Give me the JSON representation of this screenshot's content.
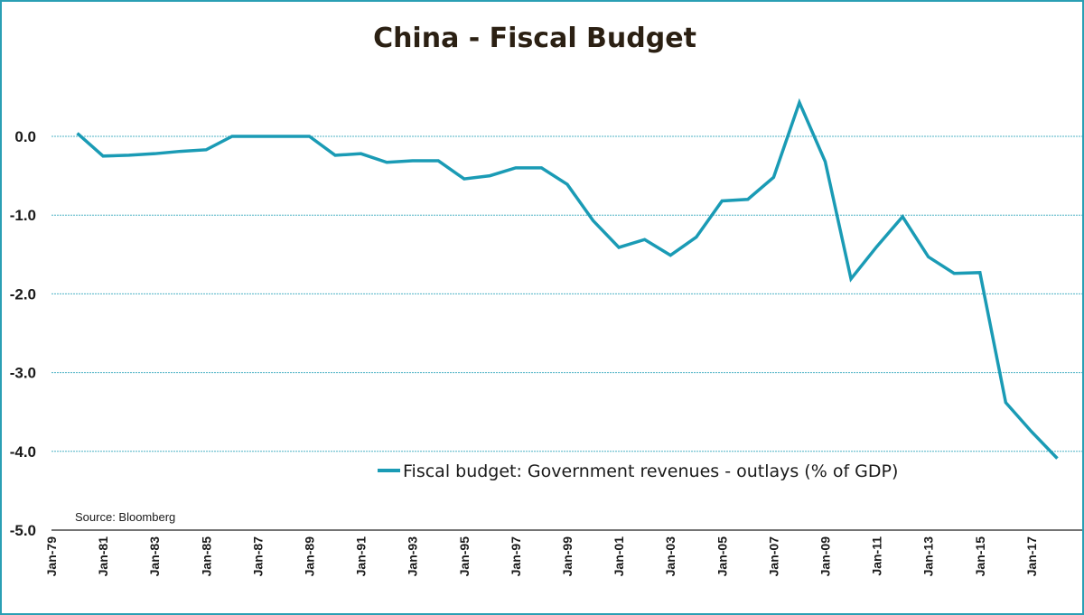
{
  "chart_data": {
    "type": "line",
    "title": "China - Fiscal Budget",
    "xlabel": "",
    "ylabel": "",
    "ylim": [
      -5,
      0.5
    ],
    "yticks": [
      "0.0",
      "-1.0",
      "-2.0",
      "-3.0",
      "-4.0",
      "-5.0"
    ],
    "ytick_values": [
      0,
      -1,
      -2,
      -3,
      -4,
      -5
    ],
    "xticks": [
      "Jan-79",
      "Jan-81",
      "Jan-83",
      "Jan-85",
      "Jan-87",
      "Jan-89",
      "Jan-91",
      "Jan-93",
      "Jan-95",
      "Jan-97",
      "Jan-99",
      "Jan-01",
      "Jan-03",
      "Jan-05",
      "Jan-07",
      "Jan-09",
      "Jan-11",
      "Jan-13",
      "Jan-15",
      "Jan-17"
    ],
    "xtick_years": [
      1979,
      1981,
      1983,
      1985,
      1987,
      1989,
      1991,
      1993,
      1995,
      1997,
      1999,
      2001,
      2003,
      2005,
      2007,
      2009,
      2011,
      2013,
      2015,
      2017
    ],
    "xlim": [
      1979,
      2019
    ],
    "grid": true,
    "legend_position": "bottom-right",
    "source": "Source: Bloomberg",
    "series": [
      {
        "name": "Fiscal budget: Government revenues - outlays (% of GDP)",
        "color": "#1a9bb5",
        "x": [
          1980,
          1981,
          1982,
          1983,
          1984,
          1985,
          1986,
          1987,
          1988,
          1989,
          1990,
          1991,
          1992,
          1993,
          1994,
          1995,
          1996,
          1997,
          1998,
          1999,
          2000,
          2001,
          2002,
          2003,
          2004,
          2005,
          2006,
          2007,
          2008,
          2009,
          2010,
          2011,
          2012,
          2013,
          2014,
          2015,
          2016,
          2017,
          2018
        ],
        "values": [
          0.04,
          -0.25,
          -0.24,
          -0.22,
          -0.19,
          -0.17,
          0.0,
          0.0,
          0.0,
          0.0,
          -0.24,
          -0.22,
          -0.33,
          -0.31,
          -0.31,
          -0.54,
          -0.5,
          -0.4,
          -0.4,
          -0.61,
          -1.07,
          -1.41,
          -1.31,
          -1.51,
          -1.28,
          -0.82,
          -0.8,
          -0.52,
          0.43,
          -0.32,
          -1.81,
          -1.4,
          -1.02,
          -1.53,
          -1.74,
          -1.73,
          -3.38,
          -3.75,
          -4.09
        ]
      }
    ]
  }
}
